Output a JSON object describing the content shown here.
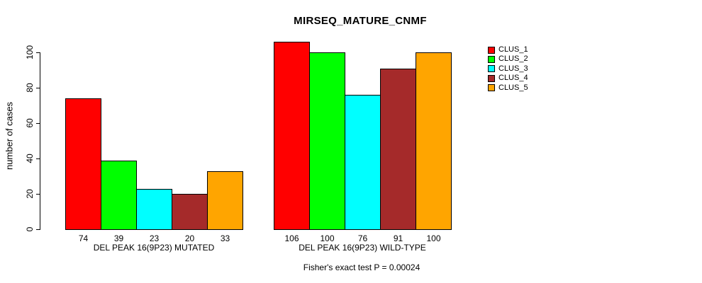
{
  "chart_data": {
    "type": "bar",
    "title": "MIRSEQ_MATURE_CNMF",
    "ylabel": "number of cases",
    "xlabel": "",
    "ylim": [
      0,
      110
    ],
    "yticks": [
      0,
      20,
      40,
      60,
      80,
      100
    ],
    "grid": false,
    "legend_position": "right",
    "legend": [
      {
        "label": "CLUS_1",
        "color": "#FF0000"
      },
      {
        "label": "CLUS_2",
        "color": "#00FF00"
      },
      {
        "label": "CLUS_3",
        "color": "#00FFFF"
      },
      {
        "label": "CLUS_4",
        "color": "#A52A2A"
      },
      {
        "label": "CLUS_5",
        "color": "#FFA500"
      }
    ],
    "groups": [
      {
        "label": "DEL PEAK 16(9P23) MUTATED",
        "values": [
          74,
          39,
          23,
          20,
          33
        ]
      },
      {
        "label": "DEL PEAK 16(9P23) WILD-TYPE",
        "values": [
          106,
          100,
          76,
          91,
          100
        ]
      }
    ],
    "bar_value_labels_shown": true,
    "annotation": "Fisher's exact test P = 0.00024"
  }
}
